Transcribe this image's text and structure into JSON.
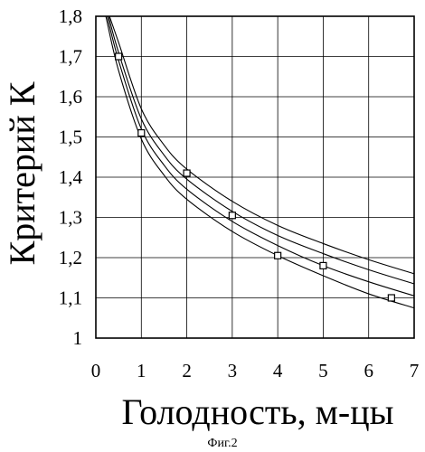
{
  "chart_data": {
    "type": "line",
    "title": "",
    "xlabel": "Голодность, м-цы",
    "ylabel": "Критерий К",
    "caption": "Фиг.2",
    "xlim": [
      0,
      7
    ],
    "ylim": [
      1.0,
      1.8
    ],
    "x_ticks": [
      "0",
      "1",
      "2",
      "3",
      "4",
      "5",
      "6",
      "7"
    ],
    "y_ticks": [
      "1",
      "1,1",
      "1,2",
      "1,3",
      "1,4",
      "1,5",
      "1,6",
      "1,7",
      "1,8"
    ],
    "grid": true,
    "series": [
      {
        "type": "scatter",
        "marker": "square",
        "x": [
          0.5,
          1.0,
          2.0,
          3.0,
          4.0,
          5.0,
          6.5
        ],
        "y": [
          1.7,
          1.51,
          1.41,
          1.305,
          1.205,
          1.18,
          1.1
        ]
      },
      {
        "type": "line",
        "x": [
          0.3,
          0.5,
          1.0,
          1.5,
          2.0,
          3.0,
          4.0,
          5.0,
          6.0,
          7.0
        ],
        "y": [
          1.8,
          1.735,
          1.57,
          1.48,
          1.42,
          1.34,
          1.28,
          1.235,
          1.195,
          1.16
        ]
      },
      {
        "type": "line",
        "x": [
          0.28,
          0.5,
          1.0,
          1.5,
          2.0,
          3.0,
          4.0,
          5.0,
          6.0,
          7.0
        ],
        "y": [
          1.8,
          1.71,
          1.545,
          1.455,
          1.395,
          1.315,
          1.255,
          1.21,
          1.17,
          1.135
        ]
      },
      {
        "type": "line",
        "x": [
          0.25,
          0.5,
          1.0,
          1.5,
          2.0,
          3.0,
          4.0,
          5.0,
          6.0,
          7.0
        ],
        "y": [
          1.8,
          1.69,
          1.52,
          1.43,
          1.37,
          1.29,
          1.23,
          1.18,
          1.14,
          1.105
        ]
      },
      {
        "type": "line",
        "x": [
          0.22,
          0.5,
          1.0,
          1.5,
          2.0,
          3.0,
          4.0,
          5.0,
          6.0,
          7.0
        ],
        "y": [
          1.8,
          1.665,
          1.495,
          1.405,
          1.345,
          1.265,
          1.205,
          1.155,
          1.11,
          1.075
        ]
      }
    ]
  }
}
